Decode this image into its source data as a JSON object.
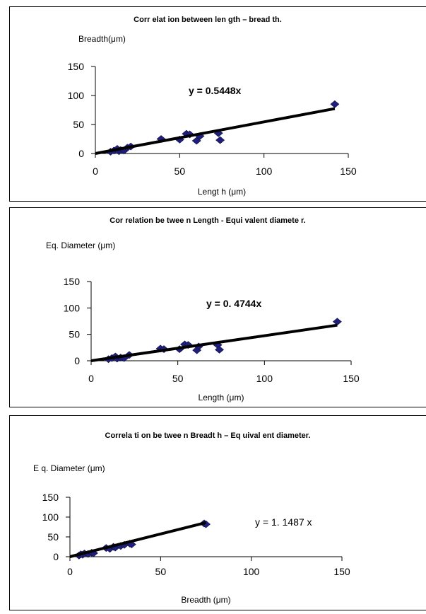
{
  "chart_data": [
    {
      "type": "scatter",
      "title": "Corr elat ion between len gth – bread th.",
      "ylabel": "Breadth(μm)",
      "xlabel": "Lengt h (μm)",
      "equation": "y =  0.5448x",
      "trendline_slope": 0.5448,
      "xlim": [
        0,
        150
      ],
      "ylim": [
        0,
        150
      ],
      "xticks": [
        "0",
        "50",
        "100",
        "150"
      ],
      "yticks": [
        "0",
        "50",
        "100",
        "150"
      ],
      "grid": false,
      "legend": "none",
      "marker_color": "#1f1f7a",
      "line_color": "#000000",
      "points": [
        {
          "x": 9,
          "y": 3
        },
        {
          "x": 11,
          "y": 5
        },
        {
          "x": 13,
          "y": 8
        },
        {
          "x": 14,
          "y": 4
        },
        {
          "x": 15,
          "y": 6
        },
        {
          "x": 17,
          "y": 5
        },
        {
          "x": 19,
          "y": 10
        },
        {
          "x": 21,
          "y": 12
        },
        {
          "x": 39,
          "y": 25
        },
        {
          "x": 50,
          "y": 24
        },
        {
          "x": 54,
          "y": 34
        },
        {
          "x": 56,
          "y": 33
        },
        {
          "x": 60,
          "y": 22
        },
        {
          "x": 62,
          "y": 30
        },
        {
          "x": 73,
          "y": 35
        },
        {
          "x": 74,
          "y": 23
        },
        {
          "x": 142,
          "y": 85
        }
      ]
    },
    {
      "type": "scatter",
      "title": "Cor relation be twee n Length -  Equi valent diamete r.",
      "ylabel": "Eq. Diameter (μm)",
      "xlabel": "Length  (μm)",
      "equation": "y =  0. 4744x",
      "trendline_slope": 0.4744,
      "xlim": [
        0,
        150
      ],
      "ylim": [
        0,
        150
      ],
      "xticks": [
        "0",
        "50",
        "100",
        "150"
      ],
      "yticks": [
        "0",
        "50",
        "100",
        "150"
      ],
      "grid": false,
      "legend": "none",
      "marker_color": "#1f1f7a",
      "line_color": "#000000",
      "points": [
        {
          "x": 10,
          "y": 3
        },
        {
          "x": 12,
          "y": 5
        },
        {
          "x": 14,
          "y": 8
        },
        {
          "x": 15,
          "y": 4
        },
        {
          "x": 17,
          "y": 6
        },
        {
          "x": 19,
          "y": 5
        },
        {
          "x": 22,
          "y": 11
        },
        {
          "x": 40,
          "y": 23
        },
        {
          "x": 42,
          "y": 22
        },
        {
          "x": 51,
          "y": 22
        },
        {
          "x": 54,
          "y": 31
        },
        {
          "x": 56,
          "y": 30
        },
        {
          "x": 61,
          "y": 20
        },
        {
          "x": 62,
          "y": 27
        },
        {
          "x": 73,
          "y": 30
        },
        {
          "x": 74,
          "y": 21
        },
        {
          "x": 142,
          "y": 74
        }
      ]
    },
    {
      "type": "scatter",
      "title": "Correla ti on be twee n Breadt h – Eq uival ent diameter.",
      "ylabel": "E q. Diameter (μm)",
      "xlabel": "Breadth (μm)",
      "equation": "y =  1. 1487 x",
      "trendline_slope": 1.1487,
      "xlim": [
        0,
        150
      ],
      "ylim": [
        0,
        150
      ],
      "xticks": [
        "0",
        "50",
        "100",
        "150"
      ],
      "yticks": [
        "0",
        "50",
        "100",
        "150"
      ],
      "grid": false,
      "legend": "none",
      "marker_color": "#1f1f7a",
      "line_color": "#000000",
      "points": [
        {
          "x": 5,
          "y": 3
        },
        {
          "x": 6,
          "y": 6
        },
        {
          "x": 7,
          "y": 5
        },
        {
          "x": 8,
          "y": 8
        },
        {
          "x": 10,
          "y": 7
        },
        {
          "x": 12,
          "y": 10
        },
        {
          "x": 13,
          "y": 9
        },
        {
          "x": 20,
          "y": 22
        },
        {
          "x": 22,
          "y": 20
        },
        {
          "x": 24,
          "y": 25
        },
        {
          "x": 25,
          "y": 23
        },
        {
          "x": 28,
          "y": 27
        },
        {
          "x": 30,
          "y": 30
        },
        {
          "x": 33,
          "y": 33
        },
        {
          "x": 34,
          "y": 31
        },
        {
          "x": 74,
          "y": 84
        },
        {
          "x": 75,
          "y": 82
        }
      ]
    }
  ]
}
